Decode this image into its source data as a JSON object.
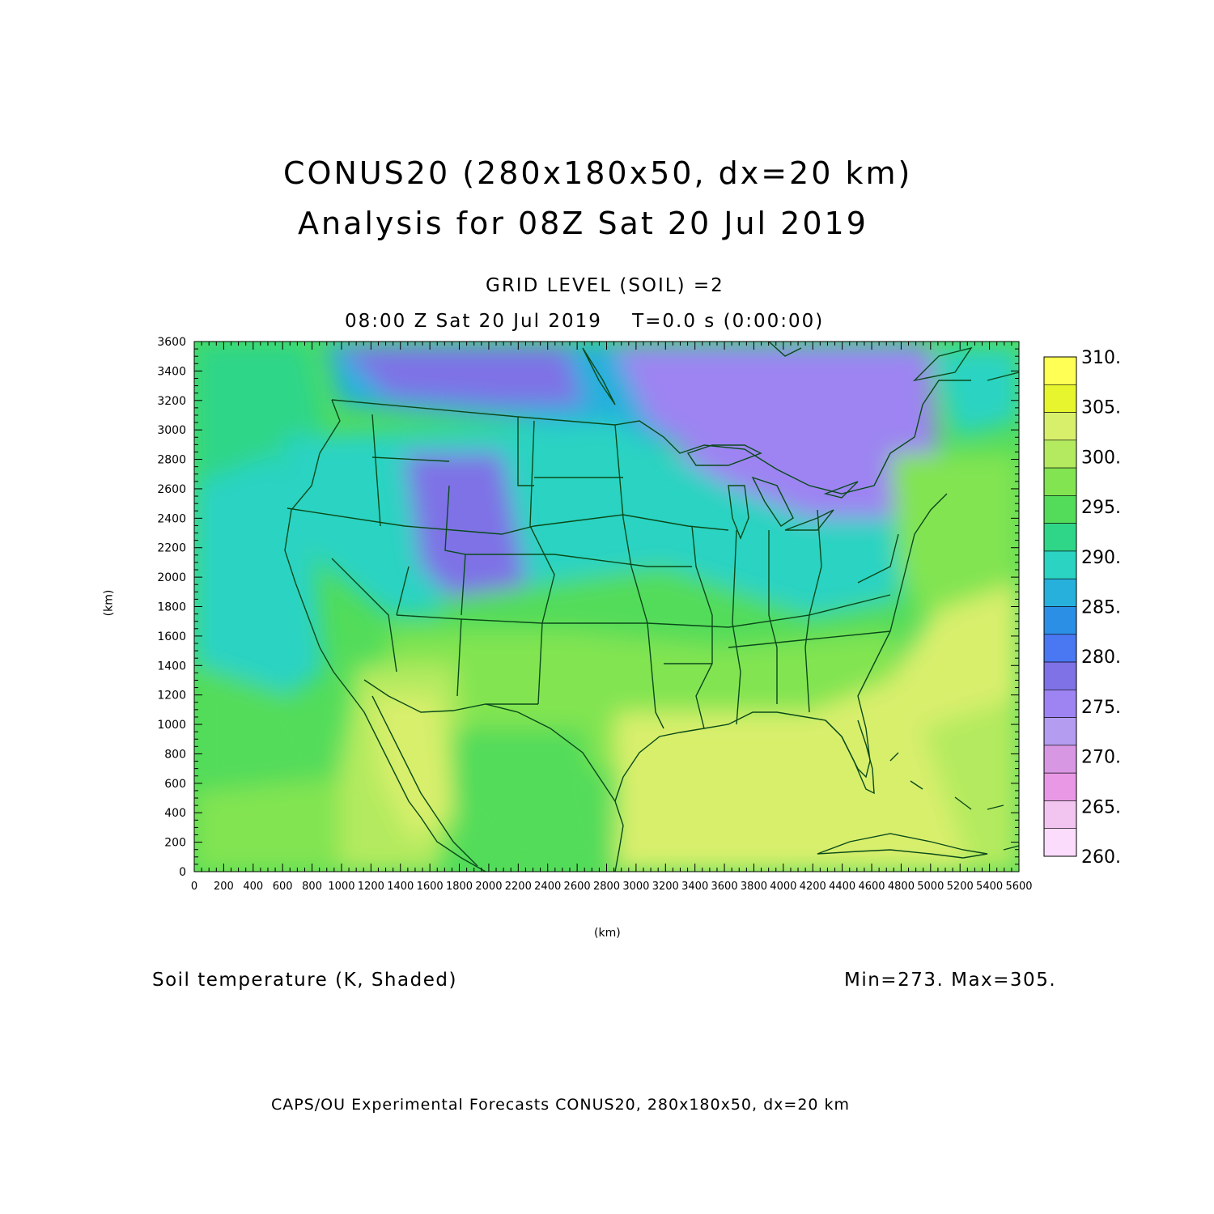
{
  "header": {
    "title_line1": "CONUS20 (280x180x50, dx=20 km)",
    "title_line2": "Analysis for 08Z Sat 20 Jul 2019",
    "grid_level": "GRID LEVEL (SOIL) =2",
    "valid_time": "08:00 Z Sat 20 Jul 2019    T=0.0 s (0:00:00)"
  },
  "axes": {
    "y_unit": "(km)",
    "x_unit": "(km)",
    "x_ticks": [
      0,
      200,
      400,
      600,
      800,
      1000,
      1200,
      1400,
      1600,
      1800,
      2000,
      2200,
      2400,
      2600,
      2800,
      3000,
      3200,
      3400,
      3600,
      3800,
      4000,
      4200,
      4400,
      4600,
      4800,
      5000,
      5200,
      5400,
      5600
    ],
    "y_ticks": [
      0,
      200,
      400,
      600,
      800,
      1000,
      1200,
      1400,
      1600,
      1800,
      2000,
      2200,
      2400,
      2600,
      2800,
      3000,
      3200,
      3400,
      3600
    ]
  },
  "colorbar": {
    "labels": [
      "310.",
      "305.",
      "300.",
      "295.",
      "290.",
      "285.",
      "280.",
      "275.",
      "270.",
      "265.",
      "260."
    ],
    "colors": [
      "#ffff55",
      "#e6f52d",
      "#d8ef6c",
      "#b4ea5f",
      "#82e451",
      "#52dc5a",
      "#2fd688",
      "#2ad3c2",
      "#27b0dc",
      "#2b8fe6",
      "#4a78f2",
      "#7e72e6",
      "#9d84f2",
      "#b49cf0",
      "#d897e2",
      "#e898e4",
      "#f2c4f0",
      "#fcdcfc"
    ]
  },
  "footer": {
    "field": "Soil temperature (K, Shaded)",
    "minmax": "Min=273. Max=305.",
    "credit": "CAPS/OU Experimental Forecasts  CONUS20, 280x180x50, dx=20 km"
  },
  "map_fill": {
    "ocean_pacific": "#52dc5a",
    "ocean_gulf_atlantic": "#d8ef6c",
    "north_cold": "#9d84f2",
    "central": "#2ad3c2",
    "south": "#82e451",
    "outline": "#0a4a1a"
  }
}
